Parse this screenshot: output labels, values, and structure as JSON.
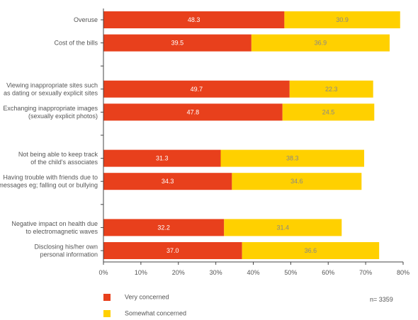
{
  "chart_data": {
    "type": "bar",
    "orientation": "horizontal",
    "stacked": true,
    "categories": [
      "Overuse",
      "Cost of the bills",
      "",
      "Viewing inappropriate sites such\nas dating or sexually explicit sites",
      "Exchanging inappropriate images\n(sexually explicit photos)",
      "",
      "Not being able to keep track\nof the child's associates",
      "Having trouble with friends due to\nmessages eg; falling out or bullying",
      "",
      "Negative impact on health due\nto electromagnetic waves",
      "Disclosing his/her own\npersonal information"
    ],
    "series": [
      {
        "name": "Very concerned",
        "color": "#e8401c",
        "label_color": "#ffffff",
        "values": [
          48.3,
          39.5,
          null,
          49.7,
          47.8,
          null,
          31.3,
          34.3,
          null,
          32.2,
          37.0
        ],
        "labels": [
          "48.3",
          "39.5",
          "",
          "49.7",
          "47.8",
          "",
          "31.3",
          "34.3",
          "",
          "32.2",
          "37.0"
        ]
      },
      {
        "name": "Somewhat concerned",
        "color": "#ffd000",
        "label_color": "#888888",
        "values": [
          30.9,
          36.9,
          null,
          22.3,
          24.5,
          null,
          38.3,
          34.6,
          null,
          31.4,
          36.6
        ],
        "labels": [
          "30.9",
          "36.9",
          "",
          "22.3",
          "24.5",
          "",
          "38.3",
          "34.6",
          "",
          "31.4",
          "36.6"
        ]
      }
    ],
    "xlim": [
      0,
      80
    ],
    "xticks": [
      0,
      10,
      20,
      30,
      40,
      50,
      60,
      70,
      80
    ],
    "xtick_labels": [
      "0%",
      "10%",
      "20%",
      "30%",
      "40%",
      "50%",
      "60%",
      "70%",
      "80%"
    ],
    "grid": false,
    "legend_position": "bottom-left",
    "note": "n= 3359"
  }
}
